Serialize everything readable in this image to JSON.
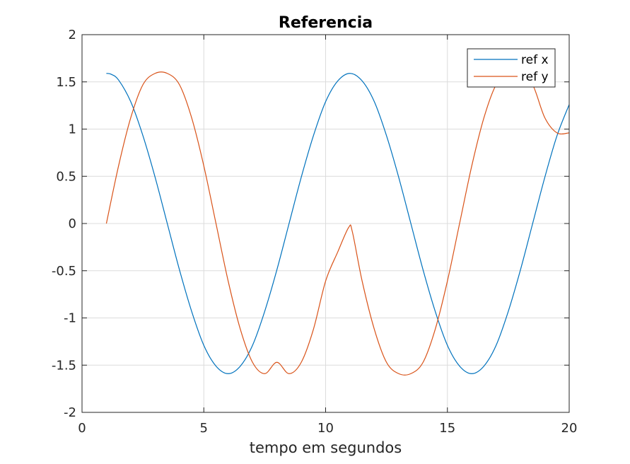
{
  "chart_data": {
    "type": "line",
    "title": "Referencia",
    "xlabel": "tempo em segundos",
    "ylabel": "",
    "xlim": [
      0,
      20
    ],
    "ylim": [
      -2,
      2
    ],
    "xticks": [
      0,
      5,
      10,
      15,
      20
    ],
    "yticks": [
      -2,
      -1.5,
      -1,
      -0.5,
      0,
      0.5,
      1,
      1.5,
      2
    ],
    "xtick_labels": [
      "0",
      "5",
      "10",
      "15",
      "20"
    ],
    "ytick_labels": [
      "-2",
      "-1.5",
      "-1",
      "-0.5",
      "0",
      "0.5",
      "1",
      "1.5",
      "2"
    ],
    "grid": true,
    "legend_position": "top-right",
    "series": [
      {
        "name": "ref x",
        "color": "#0072BD",
        "x": [
          1,
          1.2,
          1.5,
          2,
          2.5,
          3,
          3.5,
          4,
          4.5,
          5,
          5.5,
          6,
          6.5,
          7,
          7.5,
          8,
          8.5,
          9,
          9.5,
          10,
          10.5,
          11,
          11.5,
          12,
          12.5,
          13,
          13.5,
          14,
          14.5,
          15,
          15.5,
          16,
          16.5,
          17,
          17.5,
          18,
          18.5,
          19,
          19.5,
          20
        ],
        "y": [
          1.59,
          1.58,
          1.52,
          1.29,
          0.93,
          0.49,
          0.0,
          -0.49,
          -0.93,
          -1.29,
          -1.51,
          -1.59,
          -1.51,
          -1.29,
          -0.93,
          -0.49,
          0.0,
          0.49,
          0.93,
          1.29,
          1.51,
          1.59,
          1.51,
          1.29,
          0.93,
          0.49,
          0.0,
          -0.49,
          -0.93,
          -1.29,
          -1.51,
          -1.59,
          -1.51,
          -1.29,
          -0.93,
          -0.49,
          0.0,
          0.49,
          0.93,
          1.26
        ]
      },
      {
        "name": "ref y",
        "color": "#D95319",
        "x": [
          1,
          1.5,
          2,
          2.5,
          3,
          3.5,
          4,
          4.5,
          5,
          5.5,
          6,
          6.5,
          7,
          7.5,
          8,
          8.5,
          9,
          9.5,
          10,
          10.5,
          10.95,
          11.1,
          11.5,
          12,
          12.5,
          13,
          13.5,
          14,
          14.5,
          15,
          15.5,
          16,
          16.5,
          17,
          17.5,
          18,
          18.5,
          19,
          19.5,
          20
        ],
        "y": [
          0.0,
          0.61,
          1.12,
          1.47,
          1.59,
          1.59,
          1.47,
          1.12,
          0.61,
          0.0,
          -0.61,
          -1.12,
          -1.47,
          -1.59,
          -1.47,
          -1.59,
          -1.47,
          -1.12,
          -0.61,
          -0.3,
          -0.04,
          -0.09,
          -0.61,
          -1.12,
          -1.47,
          -1.59,
          -1.59,
          -1.47,
          -1.12,
          -0.61,
          0.0,
          0.61,
          1.12,
          1.47,
          1.59,
          1.59,
          1.47,
          1.12,
          0.96,
          0.96
        ]
      }
    ]
  }
}
